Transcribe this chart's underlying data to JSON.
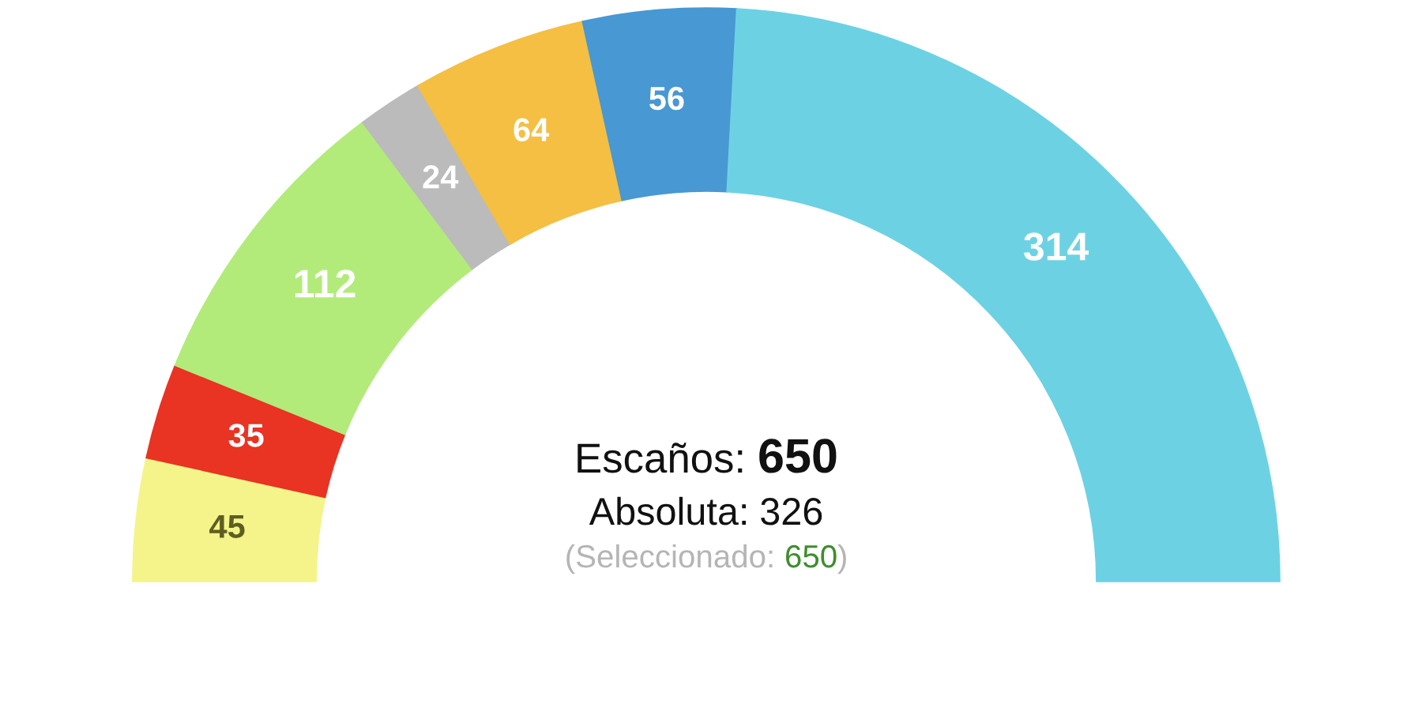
{
  "chart_data": {
    "type": "donut",
    "categories": [
      null,
      null,
      null,
      null,
      null,
      null,
      null
    ],
    "values": [
      45,
      35,
      112,
      24,
      64,
      56,
      314
    ],
    "colors": [
      "#f4f48a",
      "#e93323",
      "#b2eb7a",
      "#bbbbbb",
      "#f4bf43",
      "#4898d3",
      "#6cd2e3"
    ],
    "data_labels": true,
    "annotations": [
      "Escaños: 650",
      "Absoluta: 326",
      "(Seleccionado: 650)"
    ]
  }
}
